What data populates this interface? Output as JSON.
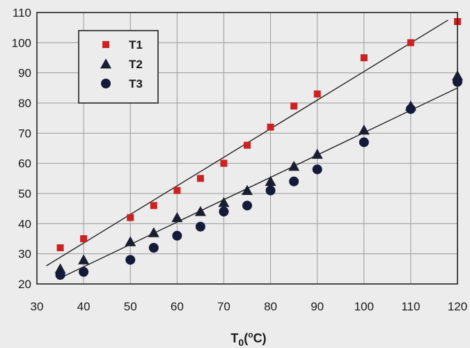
{
  "chart_data": {
    "type": "scatter",
    "xlabel": {
      "main": "T",
      "sub": "0",
      "unit_open": "(",
      "unit_sup": "o",
      "unit_close": "C)"
    },
    "ylabel": "",
    "xlim": [
      30,
      120
    ],
    "ylim": [
      20,
      110
    ],
    "xticks": [
      30,
      40,
      50,
      60,
      70,
      80,
      90,
      100,
      110,
      120
    ],
    "yticks": [
      20,
      30,
      40,
      50,
      60,
      70,
      80,
      90,
      100,
      110
    ],
    "grid": true,
    "legend_position": "top-left",
    "series": [
      {
        "name": "T1",
        "marker": "square",
        "color": "#cc2222",
        "x": [
          35,
          40,
          50,
          55,
          60,
          65,
          70,
          75,
          80,
          85,
          90,
          100,
          110,
          120
        ],
        "y": [
          32,
          35,
          42,
          46,
          51,
          55,
          60,
          66,
          72,
          79,
          83,
          95,
          100,
          107
        ]
      },
      {
        "name": "T2",
        "marker": "triangle",
        "color": "#1a1d2e",
        "x": [
          35,
          40,
          50,
          55,
          60,
          65,
          70,
          75,
          80,
          85,
          90,
          100,
          110,
          120
        ],
        "y": [
          25,
          28,
          34,
          37,
          42,
          44,
          47,
          51,
          54,
          59,
          63,
          71,
          79,
          89
        ]
      },
      {
        "name": "T3",
        "marker": "circle",
        "color": "#141a3a",
        "x": [
          35,
          40,
          50,
          55,
          60,
          65,
          70,
          75,
          80,
          85,
          90,
          100,
          110,
          120
        ],
        "y": [
          23,
          24,
          28,
          32,
          36,
          39,
          44,
          46,
          51,
          54,
          58,
          67,
          78,
          87
        ]
      }
    ],
    "fit_lines": [
      {
        "name": "fit-T1",
        "x": [
          32,
          118
        ],
        "y": [
          26,
          107.5
        ]
      },
      {
        "name": "fit-T2",
        "x": [
          35,
          120
        ],
        "y": [
          22,
          85
        ]
      }
    ]
  }
}
